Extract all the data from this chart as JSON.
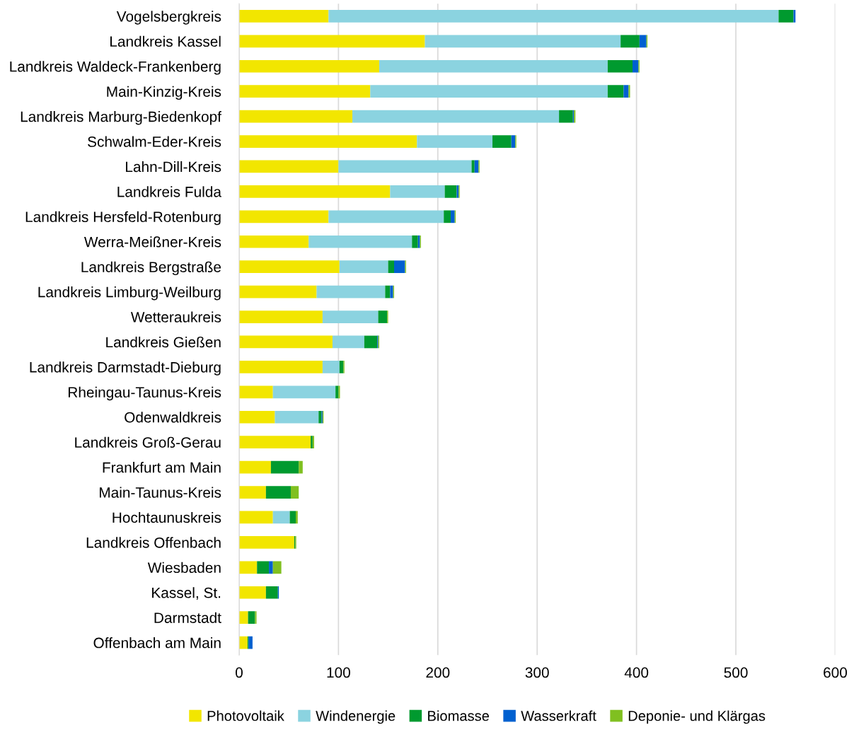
{
  "chart_data": {
    "type": "bar",
    "orientation": "horizontal",
    "stacked": true,
    "categories": [
      "Vogelsbergkreis",
      "Landkreis Kassel",
      "Landkreis Waldeck-Frankenberg",
      "Main-Kinzig-Kreis",
      "Landkreis Marburg-Biedenkopf",
      "Schwalm-Eder-Kreis",
      "Lahn-Dill-Kreis",
      "Landkreis Fulda",
      "Landkreis Hersfeld-Rotenburg",
      "Werra-Meißner-Kreis",
      "Landkreis Bergstraße",
      "Landkreis Limburg-Weilburg",
      "Wetteraukreis",
      "Landkreis Gießen",
      "Landkreis Darmstadt-Dieburg",
      "Rheingau-Taunus-Kreis",
      "Odenwaldkreis",
      "Landkreis Groß-Gerau",
      "Frankfurt am Main",
      "Main-Taunus-Kreis",
      "Hochtaunuskreis",
      "Landkreis Offenbach",
      "Wiesbaden",
      "Kassel, St.",
      "Darmstadt",
      "Offenbach am Main"
    ],
    "series": [
      {
        "name": "Photovoltaik",
        "color": "#f2e600",
        "values": [
          90,
          187,
          141,
          132,
          114,
          179,
          100,
          152,
          90,
          70,
          101,
          78,
          84,
          94,
          84,
          34,
          36,
          72,
          32,
          27,
          34,
          55.5,
          18,
          27,
          9,
          8.5
        ]
      },
      {
        "name": "Windenergie",
        "color": "#8bd3e0",
        "values": [
          453,
          197,
          230,
          239,
          208,
          76,
          134,
          55,
          116,
          104,
          49,
          69,
          56,
          32,
          17,
          63,
          44,
          0,
          0,
          0,
          17,
          0,
          0,
          0,
          0,
          0
        ]
      },
      {
        "name": "Biomasse",
        "color": "#009a2f",
        "values": [
          15,
          19,
          25,
          16,
          14,
          19,
          3,
          12,
          7,
          6,
          6,
          5,
          9,
          13,
          4,
          3,
          3,
          2,
          28,
          25,
          6,
          1,
          12,
          12,
          7,
          1
        ]
      },
      {
        "name": "Wasserkraft",
        "color": "#0060d0",
        "values": [
          2,
          7,
          6,
          5,
          1,
          4,
          4,
          2,
          4,
          2,
          11,
          3,
          0,
          1,
          0,
          0,
          1,
          0,
          0,
          0,
          0,
          0,
          4,
          1,
          0,
          4
        ]
      },
      {
        "name": "Deponie- und Klärgas",
        "color": "#80c020",
        "values": [
          null,
          1,
          1,
          1.5,
          1.5,
          1,
          1,
          1,
          1,
          1,
          1,
          1,
          1,
          1,
          1,
          1.5,
          1,
          1.5,
          4,
          8,
          2,
          1,
          8.5,
          0,
          1.5,
          0
        ]
      }
    ],
    "xlim": [
      0,
      600
    ],
    "xticks": [
      0,
      100,
      200,
      300,
      400,
      500,
      600
    ],
    "grid": "x",
    "legend": "bottom"
  }
}
